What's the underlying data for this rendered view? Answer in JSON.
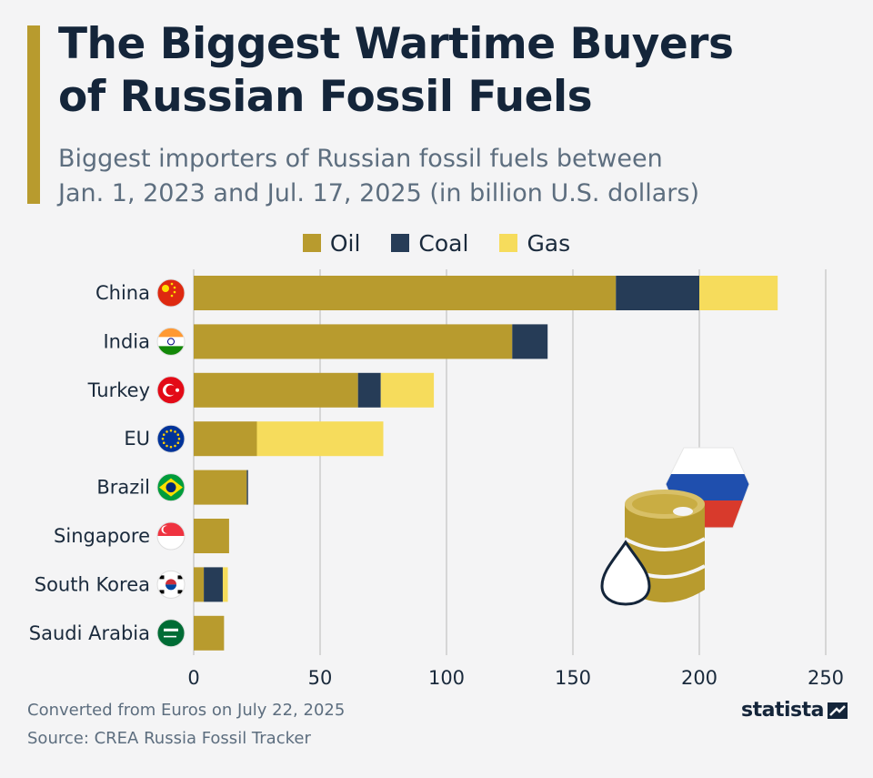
{
  "header": {
    "title_line1": "The Biggest Wartime Buyers",
    "title_line2": "of Russian Fossil Fuels",
    "subtitle_line1": "Biggest importers of Russian fossil fuels between",
    "subtitle_line2": "Jan. 1, 2023 and Jul. 17, 2025 (in billion U.S. dollars)"
  },
  "colors": {
    "oil": "#b89b2e",
    "coal": "#263c57",
    "gas": "#f6dc5c",
    "grid": "#b7b7b7",
    "text": "#1a2a3c"
  },
  "chart_data": {
    "type": "bar",
    "orientation": "horizontal",
    "stacked": true,
    "categories": [
      "China",
      "India",
      "Turkey",
      "EU",
      "Brazil",
      "Singapore",
      "South Korea",
      "Saudi Arabia"
    ],
    "series": [
      {
        "name": "Oil",
        "values": [
          167,
          126,
          65,
          25,
          21,
          14,
          4,
          12
        ]
      },
      {
        "name": "Coal",
        "values": [
          33,
          14,
          9,
          0,
          0.5,
          0,
          7.5,
          0
        ]
      },
      {
        "name": "Gas",
        "values": [
          31,
          0,
          21,
          50,
          0,
          0,
          2,
          0
        ]
      }
    ],
    "xlim": [
      0,
      250
    ],
    "xticks": [
      "0",
      "50",
      "100",
      "150",
      "200",
      "250"
    ],
    "grid": true,
    "legend_position": "top-center"
  },
  "flags": [
    {
      "country": "China",
      "icon": "china-flag-icon"
    },
    {
      "country": "India",
      "icon": "india-flag-icon"
    },
    {
      "country": "Turkey",
      "icon": "turkey-flag-icon"
    },
    {
      "country": "EU",
      "icon": "eu-flag-icon"
    },
    {
      "country": "Brazil",
      "icon": "brazil-flag-icon"
    },
    {
      "country": "Singapore",
      "icon": "singapore-flag-icon"
    },
    {
      "country": "South Korea",
      "icon": "south-korea-flag-icon"
    },
    {
      "country": "Saudi Arabia",
      "icon": "saudi-arabia-flag-icon"
    }
  ],
  "illustration": {
    "icon": "oil-barrel-russia-flag-icon"
  },
  "footer": {
    "note": "Converted from Euros on July 22, 2025",
    "source": "Source: CREA Russia Fossil Tracker",
    "brand": "statista"
  }
}
